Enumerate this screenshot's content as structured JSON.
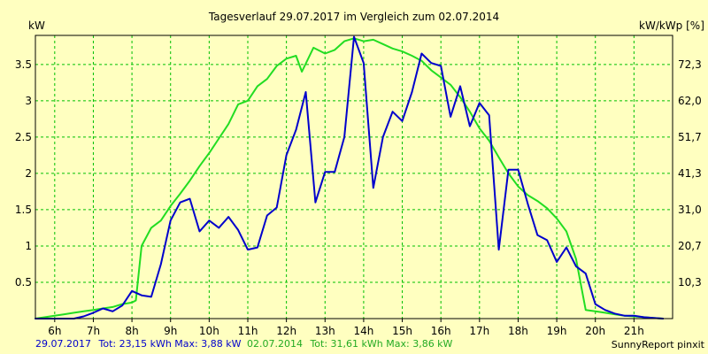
{
  "chart_data": {
    "type": "line",
    "title": "Tagesverlauf 29.07.2017 im Vergleich zum 02.07.2014",
    "ylabel_left": "kW",
    "ylabel_right": "kW/kWp [%]",
    "xlim": [
      5.5,
      22.0
    ],
    "ylim": [
      0,
      3.9
    ],
    "x_ticks": [
      {
        "x": 6,
        "label": "6h"
      },
      {
        "x": 7,
        "label": "7h"
      },
      {
        "x": 8,
        "label": "8h"
      },
      {
        "x": 9,
        "label": "9h"
      },
      {
        "x": 10,
        "label": "10h"
      },
      {
        "x": 11,
        "label": "11h"
      },
      {
        "x": 12,
        "label": "12h"
      },
      {
        "x": 13,
        "label": "13h"
      },
      {
        "x": 14,
        "label": "14h"
      },
      {
        "x": 15,
        "label": "15h"
      },
      {
        "x": 16,
        "label": "16h"
      },
      {
        "x": 17,
        "label": "17h"
      },
      {
        "x": 18,
        "label": "18h"
      },
      {
        "x": 19,
        "label": "19h"
      },
      {
        "x": 20,
        "label": "20h"
      },
      {
        "x": 21,
        "label": "21h"
      }
    ],
    "y_ticks_left": [
      {
        "y": 0.5,
        "label": "0.5"
      },
      {
        "y": 1,
        "label": "1"
      },
      {
        "y": 1.5,
        "label": "1.5"
      },
      {
        "y": 2,
        "label": "2"
      },
      {
        "y": 2.5,
        "label": "2.5"
      },
      {
        "y": 3,
        "label": "3"
      },
      {
        "y": 3.5,
        "label": "3.5"
      }
    ],
    "y_ticks_right": [
      {
        "y": 0.5,
        "label": "10,3"
      },
      {
        "y": 1.0,
        "label": "20,7"
      },
      {
        "y": 1.5,
        "label": "31,0"
      },
      {
        "y": 2.0,
        "label": "41,3"
      },
      {
        "y": 2.5,
        "label": "51,7"
      },
      {
        "y": 3.0,
        "label": "62,0"
      },
      {
        "y": 3.5,
        "label": "72,3"
      }
    ],
    "grid": true,
    "grid_color": "#00C000",
    "background": "#FFFFC0",
    "series": [
      {
        "key": "s2014",
        "color": "#22DD22",
        "points": [
          [
            5.5,
            0
          ],
          [
            5.75,
            0.02
          ],
          [
            6,
            0.04
          ],
          [
            6.25,
            0.06
          ],
          [
            6.5,
            0.08
          ],
          [
            6.75,
            0.1
          ],
          [
            7,
            0.12
          ],
          [
            7.25,
            0.14
          ],
          [
            7.5,
            0.16
          ],
          [
            7.75,
            0.2
          ],
          [
            8,
            0.22
          ],
          [
            8.1,
            0.25
          ],
          [
            8.25,
            1.0
          ],
          [
            8.5,
            1.25
          ],
          [
            8.75,
            1.35
          ],
          [
            9,
            1.55
          ],
          [
            9.25,
            1.72
          ],
          [
            9.5,
            1.9
          ],
          [
            9.75,
            2.1
          ],
          [
            10,
            2.28
          ],
          [
            10.25,
            2.48
          ],
          [
            10.5,
            2.68
          ],
          [
            10.75,
            2.95
          ],
          [
            11,
            3.0
          ],
          [
            11.25,
            3.2
          ],
          [
            11.5,
            3.3
          ],
          [
            11.75,
            3.48
          ],
          [
            12,
            3.58
          ],
          [
            12.25,
            3.62
          ],
          [
            12.4,
            3.4
          ],
          [
            12.7,
            3.73
          ],
          [
            13,
            3.65
          ],
          [
            13.25,
            3.7
          ],
          [
            13.5,
            3.82
          ],
          [
            13.75,
            3.86
          ],
          [
            14,
            3.82
          ],
          [
            14.25,
            3.84
          ],
          [
            14.5,
            3.78
          ],
          [
            14.75,
            3.72
          ],
          [
            15,
            3.68
          ],
          [
            15.25,
            3.62
          ],
          [
            15.5,
            3.55
          ],
          [
            15.75,
            3.42
          ],
          [
            16,
            3.32
          ],
          [
            16.25,
            3.22
          ],
          [
            16.5,
            3.05
          ],
          [
            16.75,
            2.85
          ],
          [
            17,
            2.62
          ],
          [
            17.25,
            2.45
          ],
          [
            17.5,
            2.22
          ],
          [
            17.75,
            2.0
          ],
          [
            18,
            1.82
          ],
          [
            18.25,
            1.7
          ],
          [
            18.5,
            1.62
          ],
          [
            18.75,
            1.52
          ],
          [
            19,
            1.38
          ],
          [
            19.25,
            1.2
          ],
          [
            19.5,
            0.82
          ],
          [
            19.75,
            0.12
          ],
          [
            20,
            0.1
          ],
          [
            20.25,
            0.08
          ],
          [
            20.5,
            0.06
          ],
          [
            20.75,
            0.04
          ],
          [
            21,
            0.03
          ],
          [
            21.25,
            0.02
          ],
          [
            21.5,
            0.01
          ],
          [
            21.75,
            0
          ]
        ]
      },
      {
        "key": "s2017",
        "color": "#0000CC",
        "points": [
          [
            5.5,
            0
          ],
          [
            6.5,
            0
          ],
          [
            6.75,
            0.03
          ],
          [
            7,
            0.08
          ],
          [
            7.25,
            0.14
          ],
          [
            7.5,
            0.1
          ],
          [
            7.75,
            0.18
          ],
          [
            8,
            0.38
          ],
          [
            8.25,
            0.32
          ],
          [
            8.5,
            0.3
          ],
          [
            8.75,
            0.75
          ],
          [
            9,
            1.35
          ],
          [
            9.25,
            1.6
          ],
          [
            9.5,
            1.65
          ],
          [
            9.75,
            1.2
          ],
          [
            10,
            1.35
          ],
          [
            10.25,
            1.25
          ],
          [
            10.5,
            1.4
          ],
          [
            10.75,
            1.22
          ],
          [
            11,
            0.95
          ],
          [
            11.25,
            0.98
          ],
          [
            11.5,
            1.42
          ],
          [
            11.75,
            1.53
          ],
          [
            12,
            2.25
          ],
          [
            12.25,
            2.6
          ],
          [
            12.5,
            3.12
          ],
          [
            12.75,
            1.6
          ],
          [
            13,
            2.02
          ],
          [
            13.25,
            2.02
          ],
          [
            13.5,
            2.5
          ],
          [
            13.75,
            3.88
          ],
          [
            14,
            3.52
          ],
          [
            14.25,
            1.8
          ],
          [
            14.5,
            2.5
          ],
          [
            14.75,
            2.85
          ],
          [
            15,
            2.72
          ],
          [
            15.25,
            3.12
          ],
          [
            15.5,
            3.65
          ],
          [
            15.75,
            3.52
          ],
          [
            16,
            3.48
          ],
          [
            16.25,
            2.78
          ],
          [
            16.5,
            3.2
          ],
          [
            16.75,
            2.65
          ],
          [
            17,
            2.97
          ],
          [
            17.25,
            2.8
          ],
          [
            17.5,
            0.95
          ],
          [
            17.75,
            2.05
          ],
          [
            18,
            2.05
          ],
          [
            18.25,
            1.58
          ],
          [
            18.5,
            1.15
          ],
          [
            18.75,
            1.08
          ],
          [
            19,
            0.78
          ],
          [
            19.25,
            0.98
          ],
          [
            19.5,
            0.72
          ],
          [
            19.75,
            0.62
          ],
          [
            20,
            0.2
          ],
          [
            20.25,
            0.12
          ],
          [
            20.5,
            0.07
          ],
          [
            20.75,
            0.04
          ],
          [
            21,
            0.04
          ],
          [
            21.25,
            0.02
          ],
          [
            21.5,
            0.01
          ],
          [
            21.75,
            0
          ]
        ]
      }
    ]
  },
  "footer": {
    "blue_date": "29.07.2017",
    "blue_stats": "Tot: 23,15 kWh Max: 3,88 kW",
    "green_date": "02.07.2014",
    "green_stats": "Tot: 31,61 kWh Max: 3,86 kW",
    "brand": "SunnyReport pinxit"
  }
}
